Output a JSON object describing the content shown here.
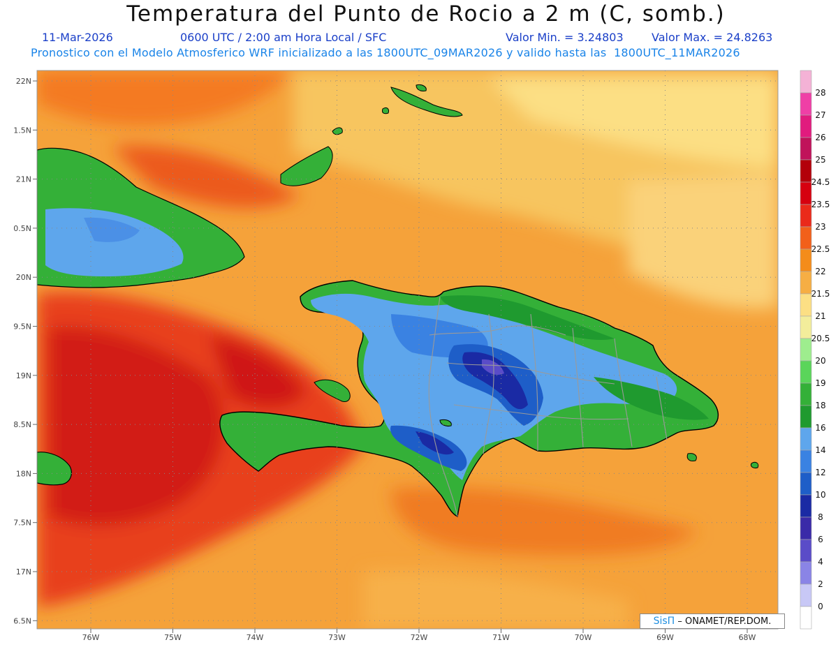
{
  "title": "Temperatura del Punto de Rocio a 2 m (C, somb.)",
  "date": "11-Mar-2026",
  "time_info": "0600 UTC / 2:00 am Hora Local / SFC",
  "min_label": "Valor Min. = 3.24803",
  "max_label": "Valor Max. = 24.8263",
  "model_info": "Pronostico con el Modelo Atmosferico WRF inicializado a las 1800UTC_09MAR2026 y valido hasta las  1800UTC_11MAR2026",
  "credit": {
    "brand": "SisΠ",
    "rest": "– ONAMET/REP.DOM."
  },
  "axes": {
    "lat_labels": [
      "22N",
      "1.5N",
      "21N",
      "0.5N",
      "20N",
      "9.5N",
      "19N",
      "8.5N",
      "18N",
      "7.5N",
      "17N",
      "6.5N"
    ],
    "lon_labels": [
      "76W",
      "75W",
      "74W",
      "73W",
      "72W",
      "71W",
      "70W",
      "69W",
      "68W"
    ]
  },
  "colorbar": {
    "labels": [
      "28",
      "27",
      "26",
      "25",
      "24.5",
      "23.5",
      "23",
      "22.5",
      "22",
      "21.5",
      "21",
      "20.5",
      "20",
      "19",
      "18",
      "16",
      "14",
      "12",
      "10",
      "8",
      "6",
      "4",
      "2",
      "0"
    ],
    "colors": [
      "#f4b2d6",
      "#ef3fa6",
      "#e11b7e",
      "#c0125a",
      "#b3000a",
      "#d6000f",
      "#ea2a1a",
      "#f2601a",
      "#f48c1a",
      "#f6ae44",
      "#fcdf84",
      "#f3ed9b",
      "#9eed8e",
      "#5ad55a",
      "#34b038",
      "#1f9a2f",
      "#5ea6ec",
      "#3a82e2",
      "#1e5ec8",
      "#1a2aa4",
      "#3a2aa8",
      "#5a4cc8",
      "#8a84e6",
      "#c8c8f6",
      "#ffffff"
    ]
  },
  "colors": {
    "ocean": "#f48c1a",
    "land": "#5ea6ec",
    "grid": "#888888",
    "border": "#000000"
  }
}
